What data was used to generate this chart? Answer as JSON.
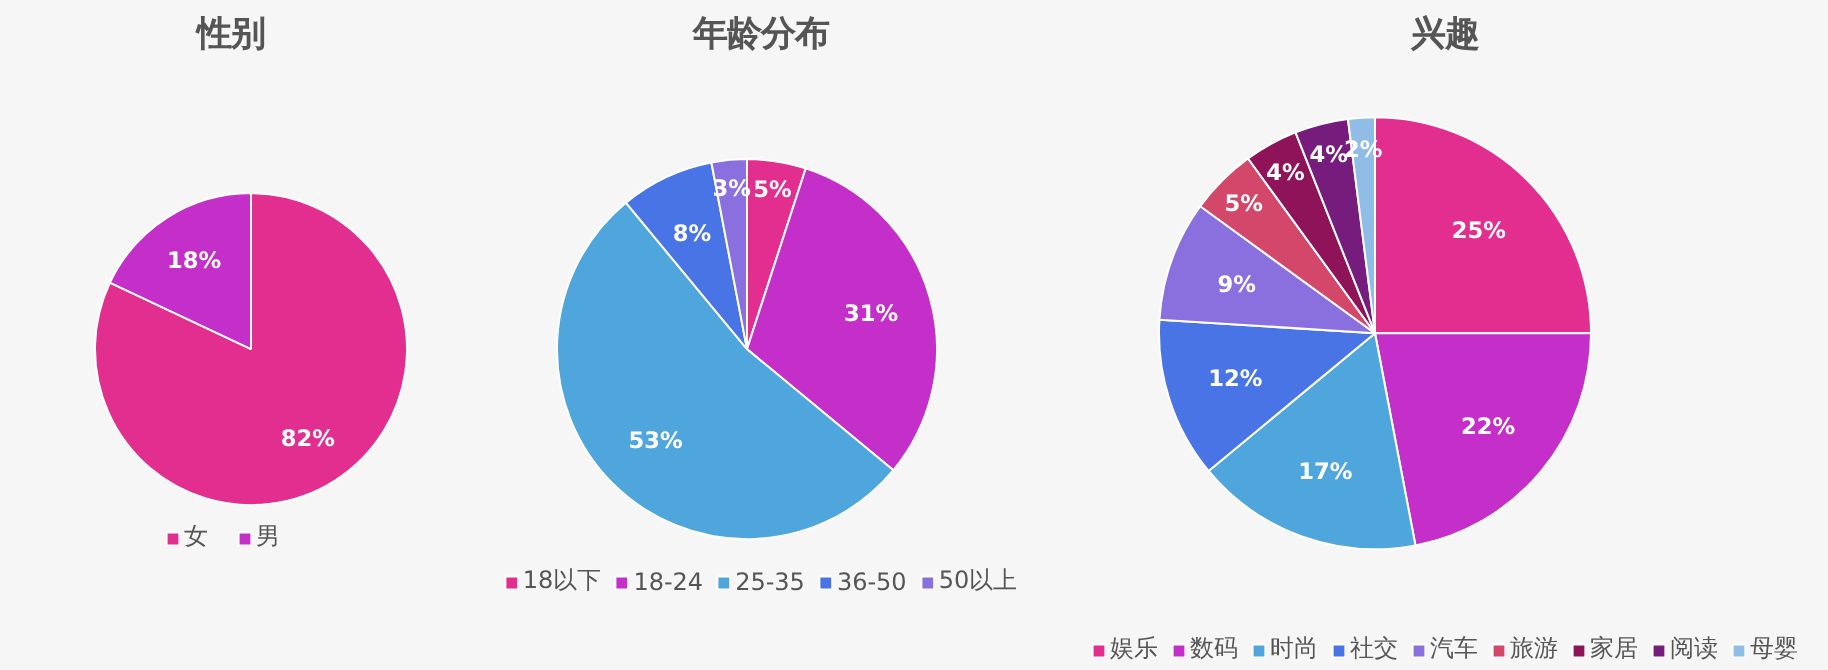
{
  "chart_data": [
    {
      "type": "pie",
      "title": "性别",
      "categories": [
        "女",
        "男"
      ],
      "values": [
        82,
        18
      ],
      "value_labels": [
        "82%",
        "18%"
      ],
      "colors": [
        "#e22e8f",
        "#c42fc9"
      ],
      "legend": "bottom"
    },
    {
      "type": "pie",
      "title": "年龄分布",
      "categories": [
        "18以下",
        "18-24",
        "25-35",
        "36-50",
        "50以上"
      ],
      "values": [
        5,
        31,
        53,
        8,
        3
      ],
      "value_labels": [
        "5%",
        "31%",
        "53%",
        "8%",
        "3%"
      ],
      "colors": [
        "#e22e8f",
        "#c42fc9",
        "#4fa6dc",
        "#4874e5",
        "#8a6fdf"
      ],
      "legend": "bottom"
    },
    {
      "type": "pie",
      "title": "兴趣",
      "categories": [
        "娱乐",
        "数码",
        "时尚",
        "社交",
        "汽车",
        "旅游",
        "家居",
        "阅读",
        "母婴"
      ],
      "values": [
        25,
        22,
        17,
        12,
        9,
        5,
        4,
        4,
        2
      ],
      "value_labels": [
        "25%",
        "22%",
        "17%",
        "12%",
        "9%",
        "5%",
        "4%",
        "4%",
        "2%"
      ],
      "colors": [
        "#e22e8f",
        "#c42fc9",
        "#4fa6dc",
        "#4874e5",
        "#8a6fdf",
        "#d2476a",
        "#8e1359",
        "#761c7c",
        "#8fbde5"
      ],
      "legend": "bottom"
    }
  ]
}
